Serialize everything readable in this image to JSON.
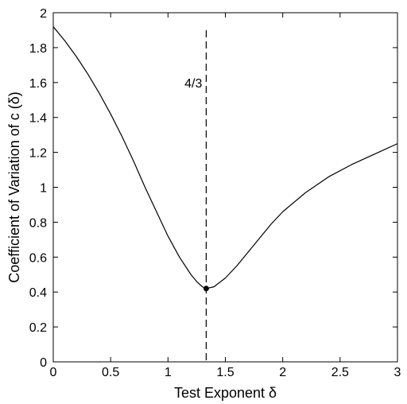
{
  "chart_data": {
    "type": "line",
    "xlabel": "Test Exponent δ",
    "ylabel": "Coefficient of Variation of c (δ)",
    "xlim": [
      0,
      3
    ],
    "ylim": [
      0,
      2
    ],
    "xticks": [
      "0",
      "0.5",
      "1",
      "1.5",
      "2",
      "2.5",
      "3"
    ],
    "yticks": [
      "0",
      "0.2",
      "0.4",
      "0.6",
      "0.8",
      "1",
      "1.2",
      "1.4",
      "1.6",
      "1.8",
      "2"
    ],
    "grid": false,
    "series": [
      {
        "x": [
          0,
          0.1,
          0.2,
          0.3,
          0.4,
          0.5,
          0.6,
          0.7,
          0.8,
          0.9,
          1.0,
          1.1,
          1.2,
          1.25,
          1.3,
          1.333,
          1.4,
          1.5,
          1.6,
          1.7,
          1.8,
          1.9,
          2.0,
          2.2,
          2.4,
          2.6,
          2.8,
          3.0
        ],
        "y": [
          1.92,
          1.84,
          1.75,
          1.65,
          1.54,
          1.42,
          1.29,
          1.15,
          1.0,
          0.86,
          0.72,
          0.6,
          0.5,
          0.46,
          0.43,
          0.42,
          0.43,
          0.48,
          0.55,
          0.63,
          0.71,
          0.79,
          0.86,
          0.97,
          1.06,
          1.13,
          1.19,
          1.25
        ],
        "color": "#000000"
      }
    ],
    "marker_point": {
      "x": 1.333,
      "y": 0.42
    },
    "vline": {
      "x": 1.333,
      "label": "4/3",
      "style": "dashed"
    }
  }
}
